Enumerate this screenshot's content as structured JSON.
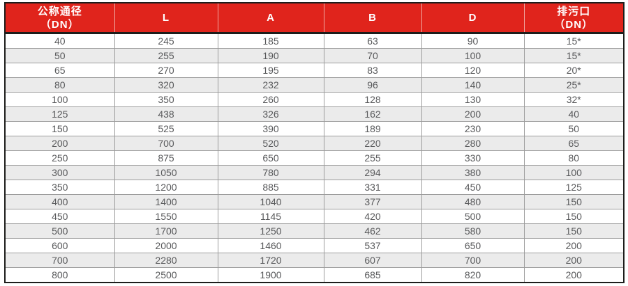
{
  "table": {
    "title": "valve-dimension-spec-table",
    "columns": [
      {
        "label": "公称通径",
        "sub": "（DN）"
      },
      {
        "label": "L",
        "sub": ""
      },
      {
        "label": "A",
        "sub": ""
      },
      {
        "label": "B",
        "sub": ""
      },
      {
        "label": "D",
        "sub": ""
      },
      {
        "label": "排污口",
        "sub": "（DN）"
      }
    ],
    "rows": [
      [
        "40",
        "245",
        "185",
        "63",
        "90",
        "15*"
      ],
      [
        "50",
        "255",
        "190",
        "70",
        "100",
        "15*"
      ],
      [
        "65",
        "270",
        "195",
        "83",
        "120",
        "20*"
      ],
      [
        "80",
        "320",
        "232",
        "96",
        "140",
        "25*"
      ],
      [
        "100",
        "350",
        "260",
        "128",
        "130",
        "32*"
      ],
      [
        "125",
        "438",
        "326",
        "162",
        "200",
        "40"
      ],
      [
        "150",
        "525",
        "390",
        "189",
        "230",
        "50"
      ],
      [
        "200",
        "700",
        "520",
        "220",
        "280",
        "65"
      ],
      [
        "250",
        "875",
        "650",
        "255",
        "330",
        "80"
      ],
      [
        "300",
        "1050",
        "780",
        "294",
        "380",
        "100"
      ],
      [
        "350",
        "1200",
        "885",
        "331",
        "450",
        "125"
      ],
      [
        "400",
        "1400",
        "1040",
        "377",
        "480",
        "150"
      ],
      [
        "450",
        "1550",
        "1145",
        "420",
        "500",
        "150"
      ],
      [
        "500",
        "1700",
        "1250",
        "462",
        "580",
        "150"
      ],
      [
        "600",
        "2000",
        "1460",
        "537",
        "650",
        "200"
      ],
      [
        "700",
        "2280",
        "1720",
        "607",
        "700",
        "200"
      ],
      [
        "800",
        "2500",
        "1900",
        "685",
        "820",
        "200"
      ]
    ]
  },
  "colors": {
    "header_bg": "#e0241c",
    "header_text": "#ffffff",
    "header_divider": "#f0a9a2",
    "outer_border": "#1d1d1b",
    "grid_line": "#9c9c9c",
    "row_alt_bg": "#ebebeb",
    "cell_text": "#58595b"
  }
}
